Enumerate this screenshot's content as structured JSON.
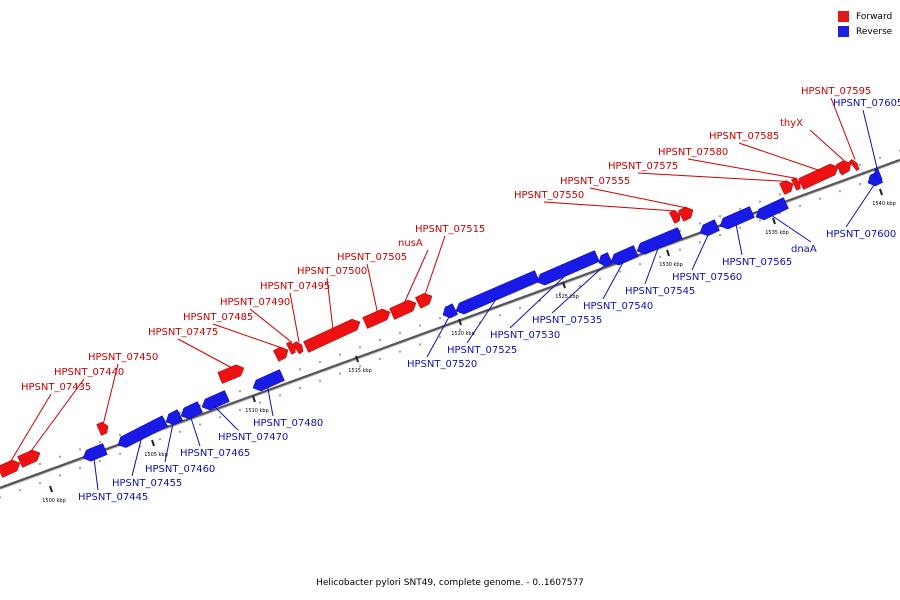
{
  "caption": "Helicobacter pylori SNT49, complete genome. - 0..1607577",
  "legend": [
    {
      "label": "Forward",
      "color": "#e31a1c"
    },
    {
      "label": "Reverse",
      "color": "#1f1fe0"
    }
  ],
  "colors": {
    "forward": "#ee1111",
    "reverse": "#1a1ae6",
    "label_forward": "#cc0000",
    "label_reverse": "#1010b0",
    "axis": "#888888"
  },
  "ticks": [
    {
      "label": "1500 kbp",
      "kbp": 1500
    },
    {
      "label": "1505 kbp",
      "kbp": 1505
    },
    {
      "label": "1510 kbp",
      "kbp": 1510
    },
    {
      "label": "1515 kbp",
      "kbp": 1515
    },
    {
      "label": "1520 kbp",
      "kbp": 1520
    },
    {
      "label": "1525 kbp",
      "kbp": 1525
    },
    {
      "label": "1530 kbp",
      "kbp": 1530
    },
    {
      "label": "1535 kbp",
      "kbp": 1535
    },
    {
      "label": "1540 kbp",
      "kbp": 1540
    }
  ],
  "genes": [
    {
      "name": "HPSNT_07435",
      "strand": "forward"
    },
    {
      "name": "HPSNT_07440",
      "strand": "forward"
    },
    {
      "name": "HPSNT_07445",
      "strand": "reverse"
    },
    {
      "name": "HPSNT_07450",
      "strand": "forward"
    },
    {
      "name": "HPSNT_07455",
      "strand": "reverse"
    },
    {
      "name": "HPSNT_07460",
      "strand": "reverse"
    },
    {
      "name": "HPSNT_07465",
      "strand": "reverse"
    },
    {
      "name": "HPSNT_07470",
      "strand": "reverse"
    },
    {
      "name": "HPSNT_07475",
      "strand": "forward"
    },
    {
      "name": "HPSNT_07480",
      "strand": "reverse"
    },
    {
      "name": "HPSNT_07485",
      "strand": "forward"
    },
    {
      "name": "HPSNT_07490",
      "strand": "forward"
    },
    {
      "name": "HPSNT_07495",
      "strand": "forward"
    },
    {
      "name": "HPSNT_07500",
      "strand": "forward"
    },
    {
      "name": "HPSNT_07505",
      "strand": "forward"
    },
    {
      "name": "nusA",
      "strand": "forward"
    },
    {
      "name": "HPSNT_07515",
      "strand": "forward"
    },
    {
      "name": "HPSNT_07520",
      "strand": "reverse"
    },
    {
      "name": "HPSNT_07525",
      "strand": "reverse"
    },
    {
      "name": "HPSNT_07530",
      "strand": "reverse"
    },
    {
      "name": "HPSNT_07535",
      "strand": "reverse"
    },
    {
      "name": "HPSNT_07540",
      "strand": "reverse"
    },
    {
      "name": "HPSNT_07545",
      "strand": "reverse"
    },
    {
      "name": "HPSNT_07550",
      "strand": "forward"
    },
    {
      "name": "HPSNT_07555",
      "strand": "forward"
    },
    {
      "name": "HPSNT_07560",
      "strand": "reverse"
    },
    {
      "name": "HPSNT_07565",
      "strand": "reverse"
    },
    {
      "name": "dnaA",
      "strand": "reverse"
    },
    {
      "name": "HPSNT_07575",
      "strand": "forward"
    },
    {
      "name": "HPSNT_07580",
      "strand": "forward"
    },
    {
      "name": "HPSNT_07585",
      "strand": "forward"
    },
    {
      "name": "thyX",
      "strand": "forward"
    },
    {
      "name": "HPSNT_07595",
      "strand": "forward"
    },
    {
      "name": "HPSNT_07600",
      "strand": "reverse"
    },
    {
      "name": "HPSNT_07605",
      "strand": "reverse"
    }
  ]
}
